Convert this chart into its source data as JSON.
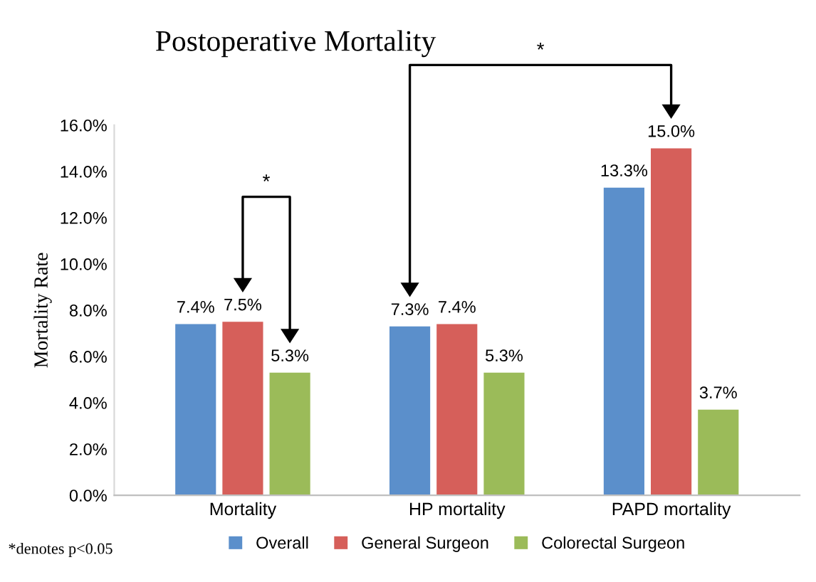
{
  "chart_data": {
    "type": "bar",
    "title": "Postoperative Mortality",
    "ylabel": "Mortality Rate",
    "categories": [
      "Mortality",
      "HP mortality",
      "PAPD mortality"
    ],
    "series": [
      {
        "name": "Overall",
        "color": "#5b8fcb",
        "values": [
          7.4,
          7.3,
          13.3
        ],
        "value_labels": [
          "7.4%",
          "7.3%",
          "13.3%"
        ]
      },
      {
        "name": "General Surgeon",
        "color": "#d65f5a",
        "values": [
          7.5,
          7.4,
          15.0
        ],
        "value_labels": [
          "7.5%",
          "7.4%",
          "15.0%"
        ]
      },
      {
        "name": "Colorectal Surgeon",
        "color": "#9bbb59",
        "values": [
          5.3,
          5.3,
          3.7
        ],
        "value_labels": [
          "5.3%",
          "5.3%",
          "3.7%"
        ]
      }
    ],
    "ylim": [
      0,
      16
    ],
    "yticks": [
      {
        "value": 0,
        "label": "0.0%"
      },
      {
        "value": 2,
        "label": "2.0%"
      },
      {
        "value": 4,
        "label": "4.0%"
      },
      {
        "value": 6,
        "label": "6.0%"
      },
      {
        "value": 8,
        "label": "8.0%"
      },
      {
        "value": 10,
        "label": "10.0%"
      },
      {
        "value": 12,
        "label": "12.0%"
      },
      {
        "value": 14,
        "label": "14.0%"
      },
      {
        "value": 16,
        "label": "16.0%"
      }
    ],
    "grid": false,
    "legend": "bottom",
    "annotations": [
      "*",
      "*",
      "*denotes p<0.05"
    ]
  }
}
